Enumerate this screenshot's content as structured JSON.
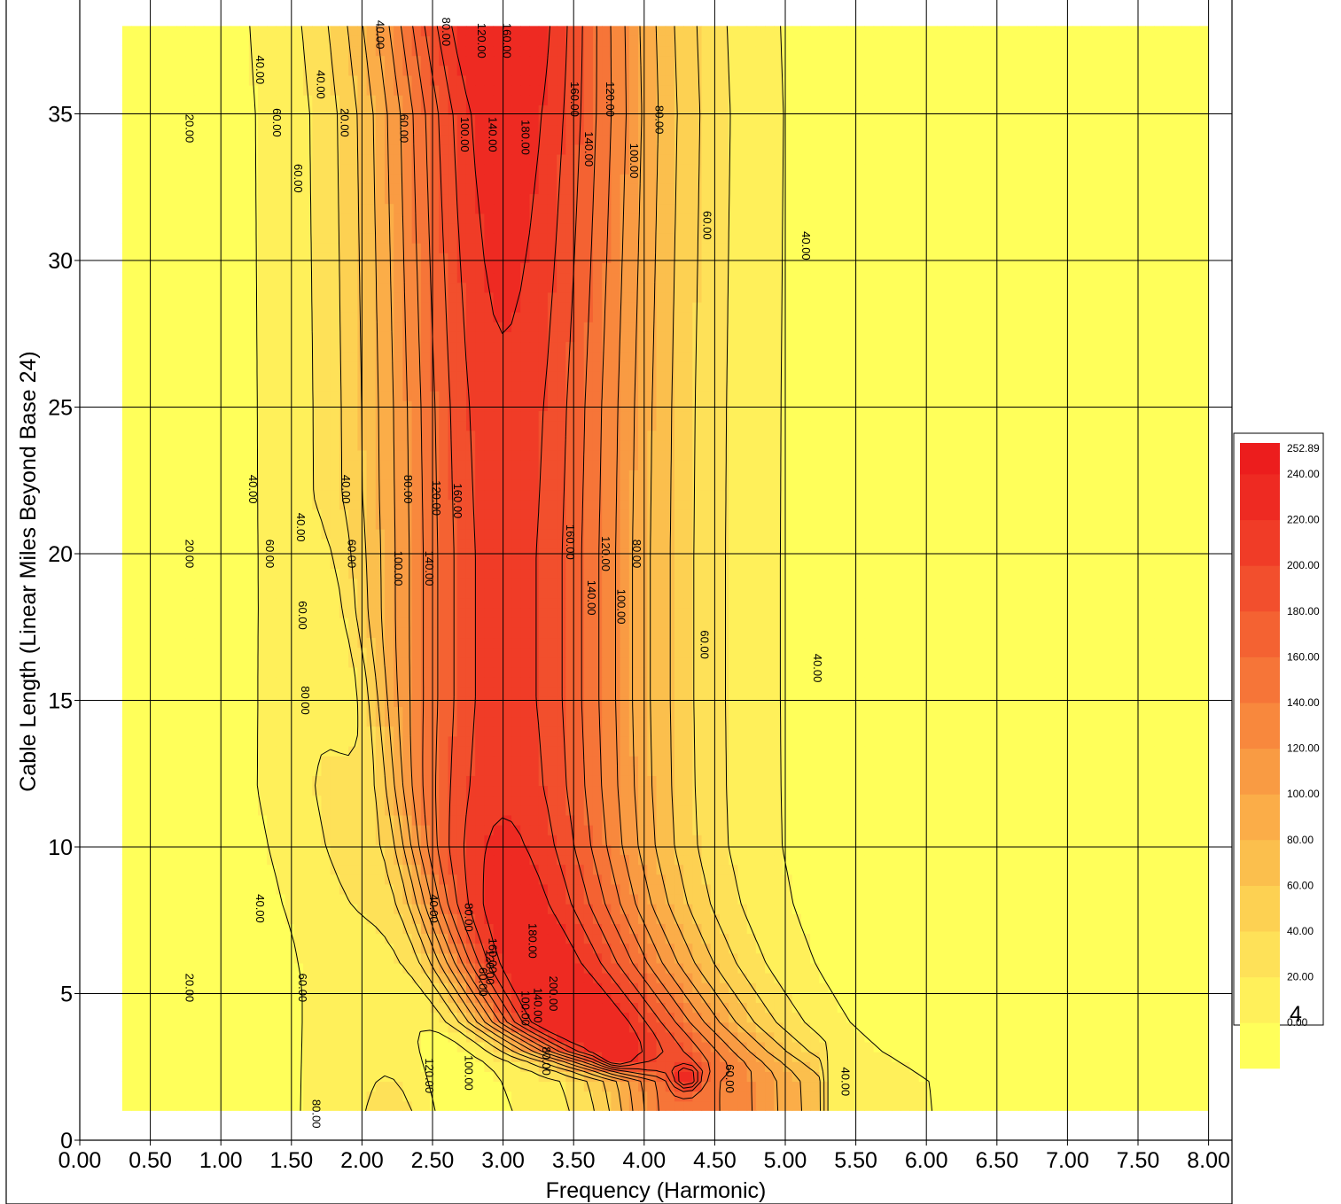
{
  "chart_data": {
    "type": "heatmap",
    "subtype": "filled-contour",
    "title": "",
    "xlabel": "Frequency (Harmonic)",
    "ylabel": "Cable Length (Linear Miles Beyond Base 24)",
    "xlim": [
      0,
      8.2
    ],
    "ylim": [
      0,
      38
    ],
    "x_ticks": [
      "0.00",
      "0.50",
      "1.00",
      "1.50",
      "2.00",
      "2.50",
      "3.00",
      "3.50",
      "4.00",
      "4.50",
      "5.00",
      "5.50",
      "6.00",
      "6.50",
      "7.00",
      "7.50",
      "8.00"
    ],
    "y_ticks": [
      "0",
      "5",
      "10",
      "15",
      "20",
      "25",
      "30",
      "35"
    ],
    "grid": true,
    "data_extent": {
      "x": [
        0.3,
        8.0
      ],
      "y": [
        1,
        38
      ]
    },
    "legend": {
      "placement": "right",
      "max_label": "252.89",
      "levels": [
        "0.00",
        "20.00",
        "40.00",
        "60.00",
        "80.00",
        "100.00",
        "120.00",
        "140.00",
        "160.00",
        "180.00",
        "200.00",
        "220.00",
        "240.00"
      ],
      "colors": [
        "#ffff5a",
        "#fff05a",
        "#fee158",
        "#fdd152",
        "#fbbf4d",
        "#fbad48",
        "#f99b43",
        "#f8883d",
        "#f67538",
        "#f46232",
        "#f24f2d",
        "#f03c27",
        "#ee2a22",
        "#ec1d1d"
      ]
    },
    "ridge": {
      "x": [
        2.95,
        3.0,
        3.0,
        3.0,
        3.0,
        3.0,
        3.0,
        3.0,
        3.05,
        3.2,
        3.45,
        3.75,
        4.25
      ],
      "y": [
        38,
        35,
        30,
        25,
        20,
        15,
        12,
        10,
        8,
        6,
        4,
        3,
        2
      ],
      "peak": [
        240,
        225,
        215,
        205,
        200,
        200,
        205,
        215,
        225,
        235,
        250,
        220,
        150
      ]
    },
    "contour_labels": [
      {
        "text": "20.00",
        "x": 0.75,
        "y": 34.5
      },
      {
        "text": "40.00",
        "x": 1.25,
        "y": 36.5
      },
      {
        "text": "60.00",
        "x": 1.37,
        "y": 34.7
      },
      {
        "text": "60.00",
        "x": 1.52,
        "y": 32.8
      },
      {
        "text": "40.00",
        "x": 1.68,
        "y": 36.0
      },
      {
        "text": "20.00",
        "x": 1.85,
        "y": 34.7
      },
      {
        "text": "40.00",
        "x": 2.1,
        "y": 37.7
      },
      {
        "text": "60.00",
        "x": 2.27,
        "y": 34.5
      },
      {
        "text": "80.00",
        "x": 2.57,
        "y": 37.8
      },
      {
        "text": "100.00",
        "x": 2.7,
        "y": 34.3
      },
      {
        "text": "120.00",
        "x": 2.82,
        "y": 37.5
      },
      {
        "text": "140.00",
        "x": 2.9,
        "y": 34.3
      },
      {
        "text": "160.00",
        "x": 3.0,
        "y": 37.5
      },
      {
        "text": "180.00",
        "x": 3.13,
        "y": 34.2
      },
      {
        "text": "160.00",
        "x": 3.48,
        "y": 35.5
      },
      {
        "text": "140.00",
        "x": 3.58,
        "y": 33.8
      },
      {
        "text": "120.00",
        "x": 3.73,
        "y": 35.5
      },
      {
        "text": "100.00",
        "x": 3.9,
        "y": 33.4
      },
      {
        "text": "80.00",
        "x": 4.08,
        "y": 34.8
      },
      {
        "text": "60.00",
        "x": 4.42,
        "y": 31.2
      },
      {
        "text": "40.00",
        "x": 5.12,
        "y": 30.5
      },
      {
        "text": "40.00",
        "x": 1.2,
        "y": 22.2
      },
      {
        "text": "40.00",
        "x": 1.86,
        "y": 22.2
      },
      {
        "text": "40.00",
        "x": 1.54,
        "y": 20.9
      },
      {
        "text": "80.00",
        "x": 2.3,
        "y": 22.2
      },
      {
        "text": "120.00",
        "x": 2.5,
        "y": 21.9
      },
      {
        "text": "160.00",
        "x": 2.65,
        "y": 21.8
      },
      {
        "text": "20.00",
        "x": 0.75,
        "y": 20.0
      },
      {
        "text": "60.00",
        "x": 1.32,
        "y": 20.0
      },
      {
        "text": "60.00",
        "x": 1.9,
        "y": 20.0
      },
      {
        "text": "100.00",
        "x": 2.23,
        "y": 19.5
      },
      {
        "text": "140.00",
        "x": 2.45,
        "y": 19.5
      },
      {
        "text": "160.00",
        "x": 3.45,
        "y": 20.4
      },
      {
        "text": "120.00",
        "x": 3.7,
        "y": 20.0
      },
      {
        "text": "80.00",
        "x": 3.92,
        "y": 20.0
      },
      {
        "text": "140.00",
        "x": 3.6,
        "y": 18.5
      },
      {
        "text": "100.00",
        "x": 3.81,
        "y": 18.2
      },
      {
        "text": "60.00",
        "x": 1.55,
        "y": 17.9
      },
      {
        "text": "60.00",
        "x": 4.4,
        "y": 16.9
      },
      {
        "text": "40.00",
        "x": 5.2,
        "y": 16.1
      },
      {
        "text": "80.00",
        "x": 1.57,
        "y": 15.0
      },
      {
        "text": "40.00",
        "x": 1.25,
        "y": 7.9
      },
      {
        "text": "40.00",
        "x": 2.48,
        "y": 7.9
      },
      {
        "text": "80.00",
        "x": 2.73,
        "y": 7.6
      },
      {
        "text": "160.00",
        "x": 2.9,
        "y": 6.3
      },
      {
        "text": "120.00",
        "x": 2.88,
        "y": 5.9
      },
      {
        "text": "60.00",
        "x": 2.83,
        "y": 5.4
      },
      {
        "text": "180.00",
        "x": 3.18,
        "y": 6.8
      },
      {
        "text": "200.00",
        "x": 3.33,
        "y": 5.0
      },
      {
        "text": "140.00",
        "x": 3.22,
        "y": 4.6
      },
      {
        "text": "100.00",
        "x": 3.13,
        "y": 4.5
      },
      {
        "text": "20.00",
        "x": 0.75,
        "y": 5.2
      },
      {
        "text": "60.00",
        "x": 1.55,
        "y": 5.2
      },
      {
        "text": "120.00",
        "x": 2.45,
        "y": 2.2
      },
      {
        "text": "100.00",
        "x": 2.73,
        "y": 2.3
      },
      {
        "text": "80.00",
        "x": 3.28,
        "y": 2.7
      },
      {
        "text": "60.00",
        "x": 4.58,
        "y": 2.1
      },
      {
        "text": "80.00",
        "x": 1.65,
        "y": 0.9
      },
      {
        "text": "40.00",
        "x": 5.4,
        "y": 2.0
      }
    ]
  },
  "page_corner_label": "4"
}
